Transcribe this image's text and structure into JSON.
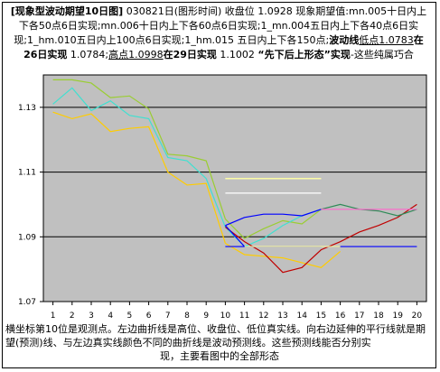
{
  "title": {
    "seg1": "[现象型波动期望10日图]",
    "seg2": " 030821日(图形时间) 收盘位 1.0928 现象期望值:mn.005十日内上下各50点6日实现;mn.006十日内上下各60点6日实现;1_mn.004五日内上下各40点6日实现;1_hm.010五日内上100点6日实现;1_hm.015 五日内上下各150点;",
    "seg3": "波动线",
    "seg4": "低点1.0783",
    "seg5": "在",
    "seg6": "26日实现",
    "seg7": " 1.0784;",
    "seg8": "高点1.0998",
    "seg9": "在",
    "seg10": "29日实现",
    "seg11": " 1.1002 ",
    "seg12": "“先下后上形态”实现",
    "seg13": "-这些纯属巧合"
  },
  "caption": {
    "line1": "横坐标第10位是观测点。左边曲折线是高位、收盘位、低位真实线。向右边延伸的平行线就是期望(预测)线、与左边真实线颜色不同的曲折线是波动预测线。这些预测线能否分别实",
    "line2": "现，主要看图中的全部形态"
  },
  "colors": {
    "plot_bg": "#c0c0c0",
    "high": "#9acd32",
    "close": "#40e0d0",
    "low": "#ffcc00",
    "forecast_blue": "#0000ff",
    "forecast_white": "#ffffff",
    "forecast_yellow": "#ffff99",
    "forecast_teal": "#2e8b57",
    "forecast_red": "#c00000",
    "forecast_pink": "#ff66cc"
  },
  "chart_data": {
    "type": "line",
    "title": "",
    "xlabel": "",
    "ylabel": "",
    "categories": [
      "1",
      "2",
      "3",
      "4",
      "5",
      "6",
      "7",
      "8",
      "9",
      "10",
      "11",
      "12",
      "13",
      "14",
      "15",
      "16",
      "17",
      "18",
      "19",
      "20"
    ],
    "ylim": [
      1.07,
      1.14
    ],
    "yticks": [
      "1.13",
      "1.11",
      "1.09",
      "1.07"
    ],
    "grid": "horizontal",
    "series": [
      {
        "id": "high",
        "x": [
          1,
          2,
          3,
          4,
          5,
          6,
          7,
          8,
          9,
          10
        ],
        "values": [
          1.1385,
          1.1385,
          1.1375,
          1.133,
          1.1335,
          1.1295,
          1.1155,
          1.115,
          1.1135,
          1.0955
        ],
        "color": "high"
      },
      {
        "id": "close",
        "x": [
          1,
          2,
          3,
          4,
          5,
          6,
          7,
          8,
          9,
          10
        ],
        "values": [
          1.131,
          1.136,
          1.129,
          1.132,
          1.1275,
          1.1265,
          1.1145,
          1.1135,
          1.108,
          1.093
        ],
        "color": "close"
      },
      {
        "id": "low",
        "x": [
          1,
          2,
          3,
          4,
          5,
          6,
          7,
          8,
          9,
          10
        ],
        "values": [
          1.1285,
          1.1265,
          1.128,
          1.1225,
          1.1235,
          1.124,
          1.11,
          1.106,
          1.1065,
          1.088
        ],
        "color": "low"
      },
      {
        "id": "wave-high",
        "x": [
          10,
          11,
          12,
          13,
          14,
          15
        ],
        "values": [
          1.0955,
          1.0895,
          1.0925,
          1.095,
          1.094,
          1.0985
        ],
        "color": "high"
      },
      {
        "id": "wave-close",
        "x": [
          10,
          11,
          12,
          13,
          14,
          15
        ],
        "values": [
          1.093,
          1.087,
          1.0895,
          1.0935,
          1.0965,
          1.0985
        ],
        "color": "close"
      },
      {
        "id": "wave-low",
        "x": [
          10,
          11,
          12,
          13,
          14,
          15,
          16
        ],
        "values": [
          1.088,
          1.0845,
          1.084,
          1.0835,
          1.082,
          1.0805,
          1.0855
        ],
        "color": "low"
      },
      {
        "id": "actual",
        "x": [
          10,
          11,
          12,
          13,
          14,
          15,
          16,
          17,
          18,
          19,
          20
        ],
        "values": [
          1.093,
          1.0885,
          1.085,
          1.079,
          1.0805,
          1.086,
          1.0885,
          1.0915,
          1.0935,
          1.096,
          1.1
        ],
        "color": "forecast_red"
      },
      {
        "id": "wave-blue",
        "x": [
          10,
          11,
          12,
          13,
          14,
          15
        ],
        "values": [
          1.0935,
          1.087,
          1.087,
          1.087,
          1.087,
          1.087
        ],
        "color": "forecast_blue"
      },
      {
        "id": "wave-blue2",
        "x": [
          10,
          11,
          12,
          13,
          14,
          15
        ],
        "values": [
          1.0935,
          1.096,
          1.097,
          1.097,
          1.0965,
          1.0985
        ],
        "color": "forecast_blue"
      },
      {
        "id": "wave-teal",
        "x": [
          15,
          16,
          17,
          18,
          19,
          20
        ],
        "values": [
          1.0985,
          1.1,
          1.0985,
          1.098,
          1.0965,
          1.0985
        ],
        "color": "forecast_teal"
      },
      {
        "id": "wave-pink",
        "x": [
          15,
          16,
          17,
          18,
          19,
          20
        ],
        "values": [
          1.0985,
          1.0985,
          1.0985,
          1.0985,
          1.0985,
          1.0985
        ],
        "color": "forecast_pink"
      },
      {
        "id": "flat-white-1",
        "x": [
          10,
          15
        ],
        "values": [
          1.108,
          1.108
        ],
        "color": "forecast_white"
      },
      {
        "id": "flat-white-2",
        "x": [
          10,
          15
        ],
        "values": [
          1.1035,
          1.1035
        ],
        "color": "forecast_white"
      },
      {
        "id": "flat-yellow-1",
        "x": [
          10,
          15
        ],
        "values": [
          1.108,
          1.108
        ],
        "color": "forecast_yellow"
      },
      {
        "id": "flat-blue-1",
        "x": [
          10,
          20
        ],
        "values": [
          1.087,
          1.087
        ],
        "color": "forecast_blue"
      },
      {
        "id": "flat-yellow-2",
        "x": [
          11,
          16
        ],
        "values": [
          1.087,
          1.087
        ],
        "color": "forecast_yellow"
      }
    ]
  }
}
